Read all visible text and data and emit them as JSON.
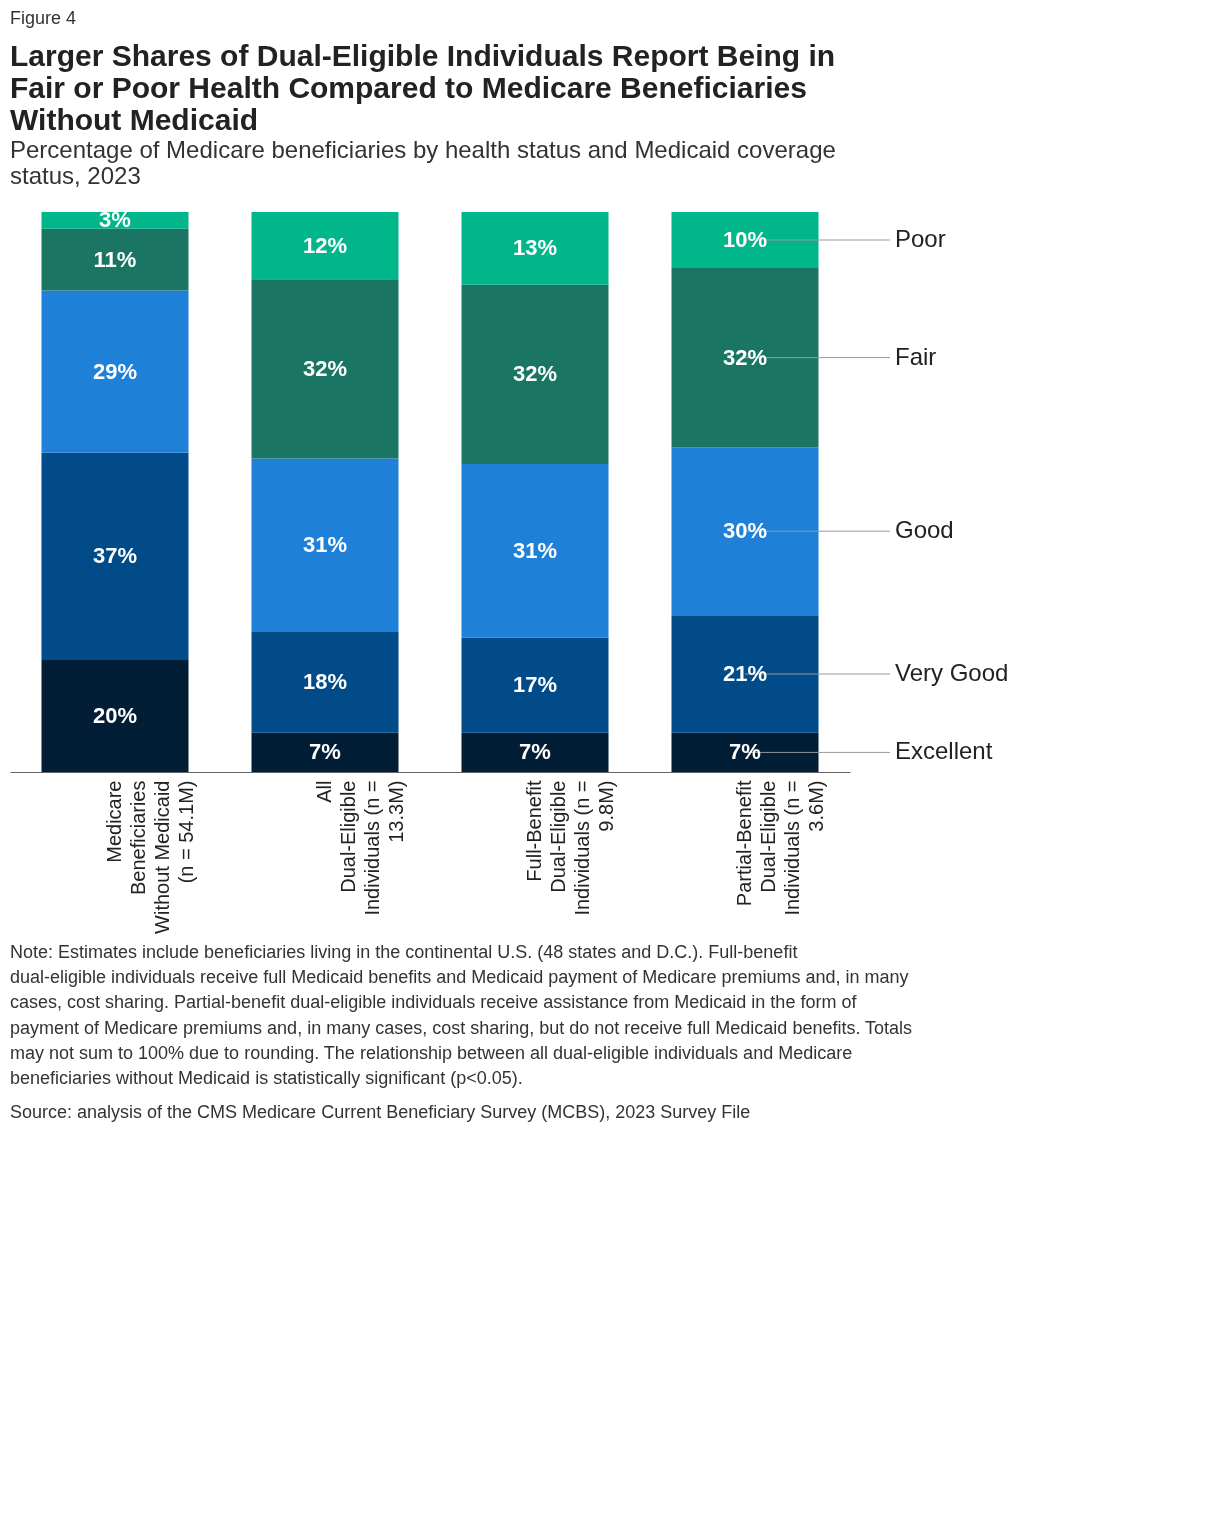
{
  "chart_data": {
    "type": "bar",
    "stacked": true,
    "legend": "right",
    "tick_labels": "x",
    "title": "Larger Shares of Dual-Eligible Individuals Report Being in Fair or Poor Health Compared to Medicare Beneficiaries Without Medicaid",
    "subtitle": "Percentage of Medicare beneficiaries by health status and Medicaid coverage status, 2023",
    "categories": [
      "Medicare Beneficiaries Without Medicaid (n = 54.1M)",
      "All Dual-Eligible Individuals (n = 13.3M)",
      "Full-Benefit Dual-Eligible Individuals (n = 9.8M)",
      "Partial-Benefit Dual-Eligible Individuals (n = 3.6M)"
    ],
    "series": [
      {
        "name": "Excellent",
        "color": "#021e36",
        "values": [
          20,
          7,
          7,
          7
        ],
        "value_labels": [
          "20%",
          "7%",
          "7%",
          "7%"
        ]
      },
      {
        "name": "Very Good",
        "color": "#004b88",
        "values": [
          37,
          18,
          17,
          21
        ],
        "value_labels": [
          "37%",
          "18%",
          "17%",
          "21%"
        ]
      },
      {
        "name": "Good",
        "color": "#1f80d8",
        "values": [
          29,
          31,
          31,
          30
        ],
        "value_labels": [
          "29%",
          "31%",
          "31%",
          "30%"
        ]
      },
      {
        "name": "Fair",
        "color": "#1b7563",
        "values": [
          11,
          32,
          32,
          32
        ],
        "value_labels": [
          "11%",
          "32%",
          "32%",
          "32%"
        ]
      },
      {
        "name": "Poor",
        "color": "#00b68a",
        "values": [
          3,
          12,
          13,
          10
        ],
        "value_labels": [
          "3%",
          "12%",
          "13%",
          "10%"
        ]
      }
    ],
    "annotations": [
      "Figure 4",
      "Note: Estimates include beneficiaries living in the continental U.S. (48 states and D.C.). Full-benefit dual-eligible individuals receive full Medicaid benefits and Medicaid payment of Medicare premiums and, in many cases, cost sharing. Partial-benefit dual-eligible individuals receive assistance from Medicaid in the form of payment of Medicare premiums and, in many cases, cost sharing, but do not receive full Medicaid benefits. Totals may not sum to 100% due to rounding. The relationship between all dual-eligible individuals and Medicare beneficiaries without Medicaid is statistically significant (p<0.05).",
      "Source: analysis of the CMS Medicare Current Beneficiary Survey (MCBS), 2023 Survey File"
    ]
  }
}
